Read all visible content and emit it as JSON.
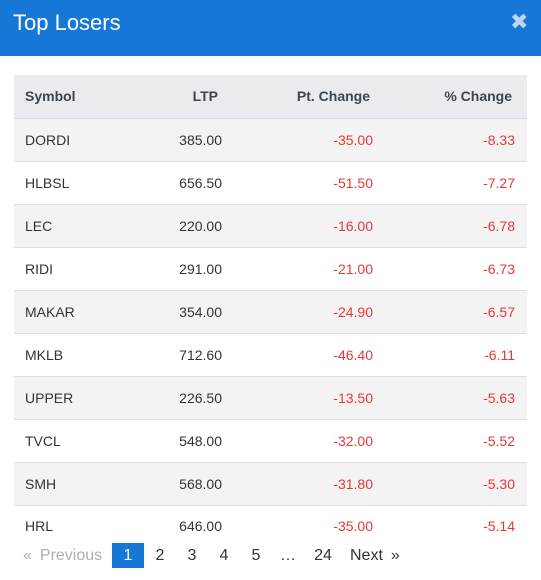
{
  "modal": {
    "title": "Top Losers",
    "close_glyph": "✖"
  },
  "table": {
    "headers": {
      "symbol": "Symbol",
      "ltp": "LTP",
      "pt_change": "Pt. Change",
      "pct_change": "% Change"
    },
    "rows": [
      {
        "symbol": "DORDI",
        "ltp": "385.00",
        "pt_change": "-35.00",
        "pct_change": "-8.33"
      },
      {
        "symbol": "HLBSL",
        "ltp": "656.50",
        "pt_change": "-51.50",
        "pct_change": "-7.27"
      },
      {
        "symbol": "LEC",
        "ltp": "220.00",
        "pt_change": "-16.00",
        "pct_change": "-6.78"
      },
      {
        "symbol": "RIDI",
        "ltp": "291.00",
        "pt_change": "-21.00",
        "pct_change": "-6.73"
      },
      {
        "symbol": "MAKAR",
        "ltp": "354.00",
        "pt_change": "-24.90",
        "pct_change": "-6.57"
      },
      {
        "symbol": "MKLB",
        "ltp": "712.60",
        "pt_change": "-46.40",
        "pct_change": "-6.11"
      },
      {
        "symbol": "UPPER",
        "ltp": "226.50",
        "pt_change": "-13.50",
        "pct_change": "-5.63"
      },
      {
        "symbol": "TVCL",
        "ltp": "548.00",
        "pt_change": "-32.00",
        "pct_change": "-5.52"
      },
      {
        "symbol": "SMH",
        "ltp": "568.00",
        "pt_change": "-31.80",
        "pct_change": "-5.30"
      },
      {
        "symbol": "HRL",
        "ltp": "646.00",
        "pt_change": "-35.00",
        "pct_change": "-5.14"
      }
    ]
  },
  "pagination": {
    "prev_arrow": "«",
    "prev_label": "Previous",
    "pages": [
      "1",
      "2",
      "3",
      "4",
      "5"
    ],
    "ellipsis": "…",
    "last_page": "24",
    "next_label": "Next",
    "next_arrow": "»",
    "current_page": "1"
  },
  "colors": {
    "header_bg": "#1777d6",
    "negative": "#e53935",
    "active_page": "#1777d6"
  }
}
